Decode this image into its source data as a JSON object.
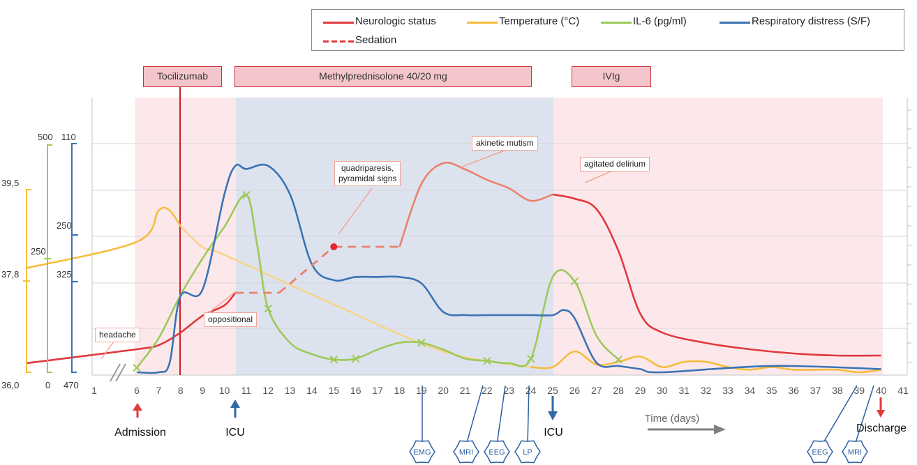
{
  "legend": {
    "neuro": "Neurologic status",
    "temp": "Temperature (°C)",
    "il6": "IL-6 (pg/ml)",
    "resp": "Respiratory distress (S/F)",
    "sed": "Sedation"
  },
  "colors": {
    "neuro": "#e0393e",
    "neuro_light": "#e9826a",
    "temp": "#f5bd3c",
    "temp_light": "#f7d48a",
    "il6": "#9cc95a",
    "il6_light": "#a8d184",
    "resp": "#3a73b5",
    "resp_light": "#7e9fd0",
    "band_pink": "#fce8ea",
    "band_blue": "#dde3ee"
  },
  "treatments": {
    "toci": "Tocilizumab",
    "methyl": "Methylprednisolone 40/20 mg",
    "ivig": "IVIg"
  },
  "annotations": {
    "headache": "headache",
    "oppositional": "oppositional",
    "quad1": "quadriparesis,",
    "quad2": "pyramidal signs",
    "akinetic": "akinetic mutism",
    "delirium": "agitated delirium"
  },
  "axes": {
    "temp": [
      "39,5",
      "37,8",
      "36,0"
    ],
    "il6": [
      "500",
      "250",
      "0"
    ],
    "sf": [
      "110",
      "250",
      "325",
      "470"
    ],
    "time_label": "Time (days)"
  },
  "events": {
    "admission": "Admission",
    "icu1": "ICU",
    "icu2": "ICU",
    "discharge": "Discharge",
    "emg": "EMG",
    "mri1": "MRI",
    "eeg1": "EEG",
    "lp": "LP",
    "eeg2": "EEG",
    "mri2": "MRI"
  },
  "chart_data": {
    "type": "line",
    "x_ticks": [
      1,
      6,
      7,
      8,
      9,
      10,
      11,
      12,
      13,
      14,
      15,
      16,
      17,
      18,
      19,
      20,
      21,
      22,
      23,
      24,
      25,
      26,
      27,
      28,
      29,
      30,
      31,
      32,
      33,
      34,
      35,
      36,
      37,
      38,
      39,
      40,
      41
    ],
    "series": [
      {
        "name": "Neurologic status",
        "x": [
          1,
          6,
          7,
          8,
          9,
          10,
          10.5,
          12,
          13,
          14,
          15,
          16,
          17,
          18,
          19,
          20,
          21,
          22,
          23,
          24,
          25,
          26,
          27,
          28,
          29,
          30,
          32,
          34,
          36,
          38,
          40
        ],
        "y": [
          0.22,
          0.55,
          0.65,
          0.95,
          1.35,
          1.6,
          1.9,
          1.9,
          2.1,
          2.6,
          3.0,
          3.0,
          3.0,
          3.0,
          4.5,
          5.0,
          4.85,
          4.6,
          4.4,
          4.1,
          4.25,
          4.15,
          3.9,
          2.9,
          1.4,
          0.95,
          0.7,
          0.55,
          0.45,
          0.4,
          0.4
        ]
      },
      {
        "name": "Temperature (°C)",
        "x": [
          1,
          6,
          7,
          7.5,
          8,
          9,
          10,
          15,
          20,
          24,
          25,
          26,
          27,
          28,
          29,
          30,
          31,
          32,
          33,
          34,
          35,
          36,
          37,
          38,
          39,
          40
        ],
        "y": [
          38.0,
          38.5,
          39.1,
          39.1,
          38.8,
          38.4,
          38.25,
          37.3,
          36.4,
          36.1,
          36.1,
          36.4,
          36.15,
          36.2,
          36.3,
          36.1,
          36.2,
          36.2,
          36.1,
          36.05,
          36.1,
          36.05,
          36.05,
          36.05,
          36.0,
          36.05
        ]
      },
      {
        "name": "IL-6 (pg/ml)",
        "x": [
          6,
          7,
          8,
          9,
          10,
          11,
          11.5,
          12,
          13,
          14,
          15,
          16,
          17,
          18,
          19,
          20,
          21,
          22,
          23,
          24,
          25,
          26,
          27,
          28
        ],
        "y": [
          10,
          75,
          170,
          250,
          320,
          390,
          280,
          140,
          65,
          40,
          28,
          30,
          50,
          65,
          65,
          50,
          30,
          25,
          20,
          30,
          210,
          200,
          80,
          28
        ]
      },
      {
        "name": "Respiratory distress (S/F)",
        "x": [
          6,
          7,
          7.5,
          8,
          9,
          10,
          10.5,
          11,
          12,
          13,
          14,
          15,
          16,
          17,
          18,
          19,
          20,
          21,
          22,
          23,
          24,
          25,
          25.5,
          26,
          27,
          28,
          29,
          30,
          35,
          40
        ],
        "y": [
          470,
          470,
          455,
          350,
          340,
          190,
          145,
          150,
          145,
          190,
          300,
          325,
          320,
          320,
          320,
          330,
          375,
          380,
          380,
          380,
          380,
          380,
          372,
          385,
          455,
          460,
          465,
          470,
          460,
          465
        ]
      }
    ],
    "sedation_segments": [
      [
        10.5,
        12.5,
        1.9,
        1.9
      ],
      [
        12.5,
        15,
        1.9,
        3.0
      ],
      [
        15,
        18,
        3.0,
        3.0
      ]
    ],
    "periods": [
      {
        "label": "Tocilizumab",
        "from": 6,
        "to": 10.5
      },
      {
        "label": "Methylprednisolone 40/20 mg",
        "from": 10.5,
        "to": 24.5
      },
      {
        "label": "IVIg",
        "from": 25,
        "to": 40
      }
    ]
  }
}
